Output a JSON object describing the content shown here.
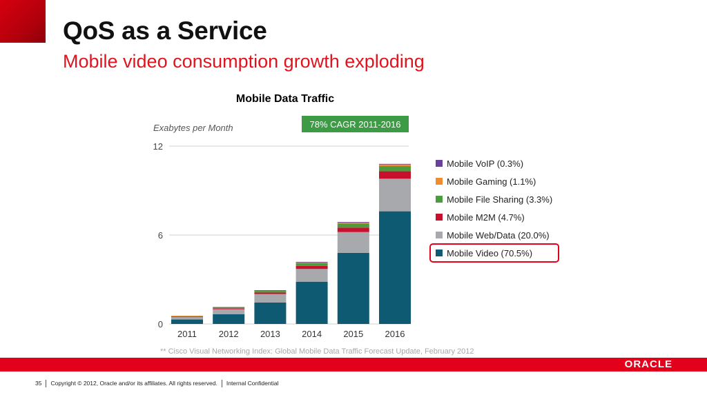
{
  "slide": {
    "title": "QoS as a Service",
    "subtitle": "Mobile video consumption growth exploding"
  },
  "chart_heading": "Mobile Data Traffic",
  "chart_data": {
    "type": "bar",
    "stacked": true,
    "ylabel": "Exabytes per Month",
    "ylim": [
      0,
      12
    ],
    "yticks": [
      0,
      6,
      12
    ],
    "categories": [
      "2011",
      "2012",
      "2013",
      "2014",
      "2015",
      "2016"
    ],
    "cagr_badge": "78% CAGR 2011-2016",
    "series": [
      {
        "name": "Mobile Video (70.5%)",
        "color": "#0e5a73",
        "values": [
          0.3,
          0.66,
          1.45,
          2.85,
          4.8,
          7.6
        ]
      },
      {
        "name": "Mobile Web/Data (20.0%)",
        "color": "#a7a9ac",
        "values": [
          0.18,
          0.33,
          0.57,
          0.86,
          1.4,
          2.2
        ]
      },
      {
        "name": "Mobile M2M (4.7%)",
        "color": "#c8102e",
        "values": [
          0.02,
          0.05,
          0.1,
          0.2,
          0.3,
          0.5
        ]
      },
      {
        "name": "Mobile File Sharing (3.3%)",
        "color": "#4a9c3c",
        "values": [
          0.04,
          0.07,
          0.11,
          0.2,
          0.27,
          0.35
        ]
      },
      {
        "name": "Mobile Gaming (1.1%)",
        "color": "#f08c2e",
        "values": [
          0.01,
          0.02,
          0.04,
          0.06,
          0.09,
          0.12
        ]
      },
      {
        "name": "Mobile VoIP (0.3%)",
        "color": "#6b3fa0",
        "values": [
          0.0,
          0.01,
          0.01,
          0.02,
          0.02,
          0.03
        ]
      }
    ],
    "legend_order": [
      5,
      4,
      3,
      2,
      1,
      0
    ],
    "highlighted_legend_entry": "Mobile Video (70.5%)",
    "highlight_color": "#e2001a",
    "grid": true,
    "legend_position": "right"
  },
  "source_note": "** Cisco Visual Networking Index: Global Mobile Data Traffic Forecast Update, February 2012",
  "brand": {
    "logo_text": "ORACLE",
    "accent": "#e2001a"
  },
  "footer": {
    "page_number": "35",
    "copyright": "Copyright © 2012, Oracle and/or its affiliates. All rights reserved.",
    "classification": "Internal Confidential"
  }
}
